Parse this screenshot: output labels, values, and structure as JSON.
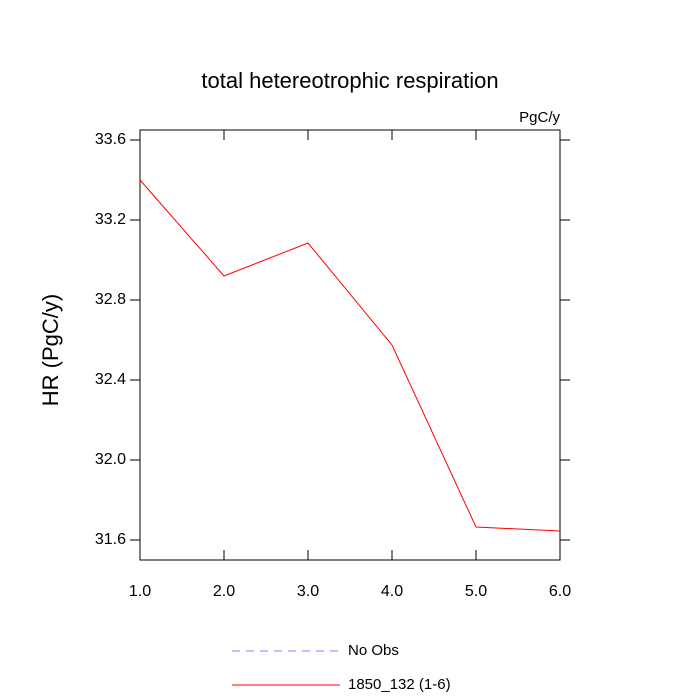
{
  "chart_data": {
    "type": "line",
    "title": "total hetereotrophic respiration",
    "units": "PgC/y",
    "ylabel": "HR  (PgC/y)",
    "x": [
      1,
      2,
      3,
      4,
      5,
      6
    ],
    "series": [
      {
        "name": "No Obs",
        "color": "#8080ff",
        "dash": true,
        "values": [
          null,
          null,
          null,
          null,
          null,
          null
        ]
      },
      {
        "name": "1850_132 (1-6)",
        "color": "#ff0000",
        "dash": false,
        "values": [
          33.4,
          32.92,
          33.085,
          32.575,
          31.665,
          31.645
        ]
      }
    ],
    "xlim": [
      1,
      6
    ],
    "xticks": [
      {
        "value": 1,
        "label": "1.0"
      },
      {
        "value": 2,
        "label": "2.0"
      },
      {
        "value": 3,
        "label": "3.0"
      },
      {
        "value": 4,
        "label": "4.0"
      },
      {
        "value": 5,
        "label": "5.0"
      },
      {
        "value": 6,
        "label": "6.0"
      }
    ],
    "ylim": [
      31.5,
      33.65
    ],
    "yticks": [
      31.6,
      {
        "value": 32,
        "label": "32.0"
      },
      32.4,
      32.8,
      33.2,
      33.6
    ],
    "grid": false
  }
}
